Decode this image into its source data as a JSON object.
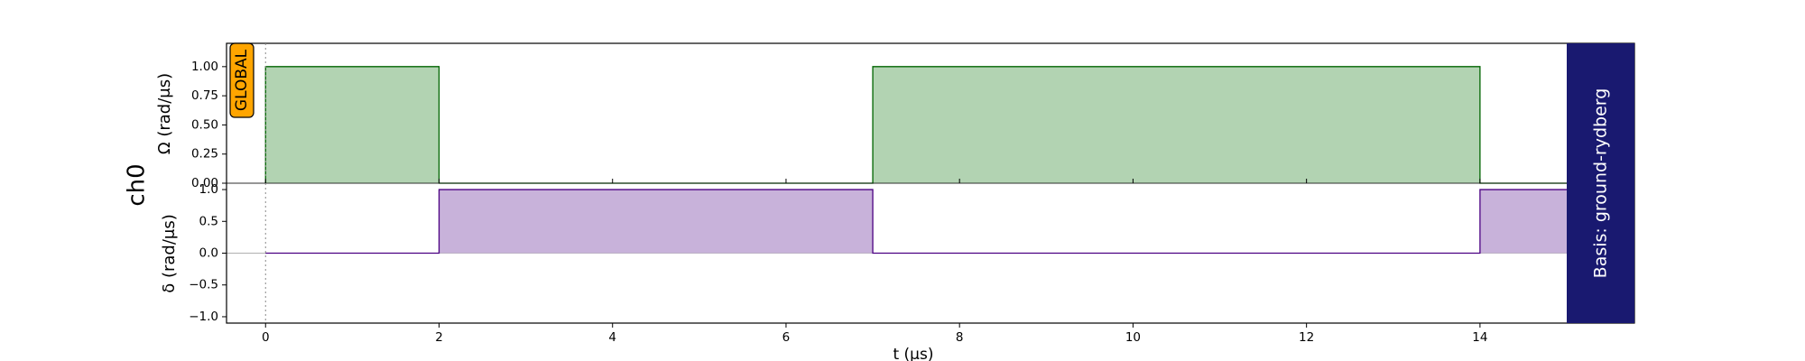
{
  "chart_data": {
    "type": "line",
    "channel": "ch0",
    "global_badge": "GLOBAL",
    "basis_label": "Basis: ground-rydberg",
    "xlabel": "t (μs)",
    "xlim": [
      -0.45,
      15.0
    ],
    "xticks": [
      0,
      2,
      4,
      6,
      8,
      10,
      12,
      14
    ],
    "series": [
      {
        "name": "Omega",
        "ylabel": "Ω (rad/μs)",
        "ylim": [
          0.0,
          1.2
        ],
        "yticks": [
          "0.00",
          "0.25",
          "0.50",
          "0.75",
          "1.00"
        ],
        "x": [
          0,
          0,
          2,
          2,
          7,
          7,
          14,
          14,
          15
        ],
        "values": [
          0,
          1,
          1,
          0,
          0,
          1,
          1,
          0,
          0
        ],
        "line_color": "#006400",
        "fill_color": "#b2d3b2"
      },
      {
        "name": "delta",
        "ylabel": "δ (rad/μs)",
        "ylim": [
          -1.1,
          1.1
        ],
        "yticks": [
          "1.0",
          "0.5",
          "0.0",
          "−0.5",
          "−1.0"
        ],
        "x": [
          0,
          2,
          2,
          7,
          7,
          14,
          14,
          15
        ],
        "values": [
          0,
          0,
          1,
          1,
          0,
          0,
          1,
          1
        ],
        "line_color": "#4b0082",
        "fill_color": "#c8b2da"
      }
    ],
    "basis_color": "#191970",
    "badge_color": "#ffa500"
  }
}
